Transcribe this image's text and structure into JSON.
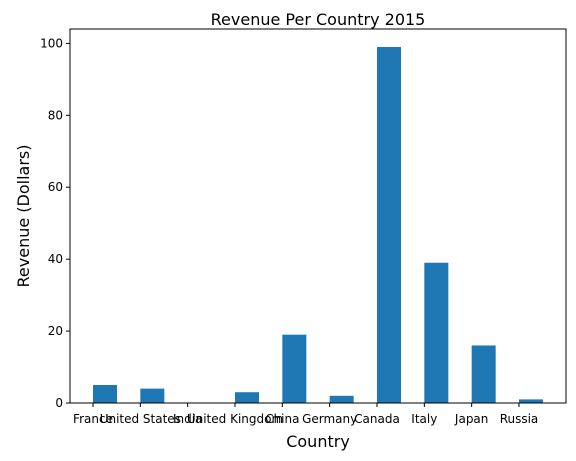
{
  "chart_data": {
    "type": "bar",
    "title": "Revenue Per Country 2015",
    "xlabel": "Country",
    "ylabel": "Revenue (Dollars)",
    "categories": [
      "France",
      "United States",
      "India",
      "United Kingdom",
      "China",
      "Germany",
      "Canada",
      "Italy",
      "Japan",
      "Russia"
    ],
    "values": [
      5,
      4,
      0,
      3,
      19,
      2,
      99,
      39,
      16,
      1
    ],
    "ylim": [
      0,
      104
    ],
    "yticks": [
      0,
      20,
      40,
      60,
      80,
      100
    ],
    "grid": false,
    "bar_color": "#1f77b4"
  }
}
